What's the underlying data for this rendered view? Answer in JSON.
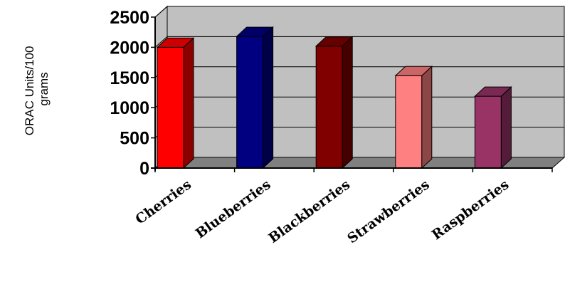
{
  "chart_data": {
    "type": "bar",
    "style": "3d-column",
    "title": "",
    "ylabel": "ORAC Units/100 grams",
    "ylabel_lines": [
      "ORAC Units/100",
      "grams"
    ],
    "xlabel": "",
    "ylim": [
      0,
      2500
    ],
    "yticks": [
      0,
      500,
      1000,
      1500,
      2000,
      2500
    ],
    "grid": true,
    "legend": false,
    "categories": [
      "Cherries",
      "Blueberries",
      "Blackberries",
      "Strawberries",
      "Raspberries"
    ],
    "values": [
      2000,
      2180,
      2020,
      1530,
      1190
    ],
    "colors": [
      "#ff0000",
      "#000080",
      "#800000",
      "#ff8080",
      "#993366"
    ],
    "wall_color": "#c0c0c0",
    "floor_color": "#808080"
  }
}
